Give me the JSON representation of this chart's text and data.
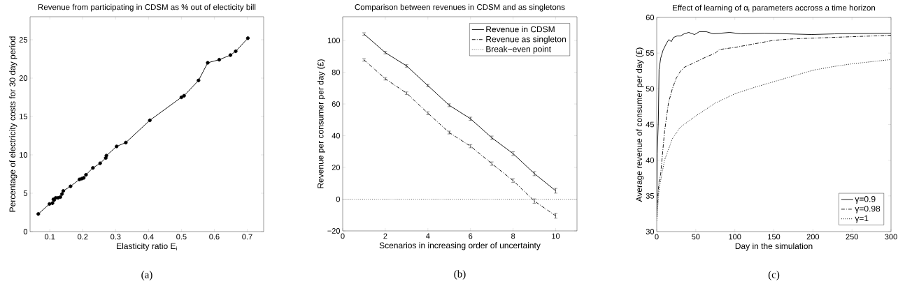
{
  "chart_data": [
    {
      "type": "line",
      "title": "Revenue from participating in CDSM as % out of electicity bill",
      "xlabel": "Elasticity ratio E$_{i}$",
      "ylabel": "Percentage of  electricity costs for 30 day period",
      "annotations": [
        "(a)"
      ],
      "xlim": [
        0.04,
        0.75
      ],
      "ylim": [
        0,
        28
      ],
      "xticks": [
        0.1,
        0.2,
        0.3,
        0.4,
        0.5,
        0.6,
        0.7
      ],
      "yticks": [
        0,
        5,
        10,
        15,
        20,
        25
      ],
      "marker": "circle",
      "line_style": "solid",
      "legend": false,
      "x": [
        0.065,
        0.099,
        0.108,
        0.111,
        0.113,
        0.118,
        0.125,
        0.132,
        0.137,
        0.141,
        0.163,
        0.19,
        0.197,
        0.203,
        0.21,
        0.231,
        0.253,
        0.27,
        0.272,
        0.303,
        0.331,
        0.404,
        0.5,
        0.508,
        0.552,
        0.58,
        0.615,
        0.649,
        0.665,
        0.702
      ],
      "series": [
        {
          "color": "#000000",
          "values": [
            2.3,
            3.6,
            3.7,
            4.2,
            4.1,
            4.4,
            4.4,
            4.5,
            4.9,
            5.3,
            5.9,
            6.8,
            6.9,
            7.0,
            7.4,
            8.3,
            8.9,
            9.6,
            9.9,
            11.1,
            11.6,
            14.5,
            17.5,
            17.7,
            19.7,
            22.0,
            22.4,
            23.0,
            23.5,
            25.2
          ]
        }
      ]
    },
    {
      "type": "line",
      "title": "Comparison between revenues in CDSM and as singletons",
      "xlabel": "Scenarios in increasing order of uncertainty",
      "ylabel": "Revenue per consumer per day (£)",
      "annotations": [
        "(b)"
      ],
      "xlim": [
        0,
        11
      ],
      "ylim": [
        -20,
        115
      ],
      "xticks": [
        0,
        2,
        4,
        6,
        8,
        10
      ],
      "yticks": [
        {
          "value": -20,
          "label": "−20"
        },
        0,
        20,
        40,
        60,
        80,
        100
      ],
      "legend": "top right",
      "x": [
        1,
        2,
        3,
        4,
        5,
        6,
        7,
        8,
        9,
        10
      ],
      "series": [
        {
          "name": "Revenue in CDSM",
          "color": "#000000",
          "line_style": "solid",
          "values": [
            104.1,
            92.4,
            84.0,
            71.6,
            59.2,
            50.7,
            38.7,
            28.7,
            16.1,
            5.3
          ],
          "errors": [
            0.8,
            0.8,
            0.8,
            0.8,
            0.9,
            1.0,
            1.1,
            1.2,
            1.3,
            1.5
          ]
        },
        {
          "name": "Revenue as singleton",
          "color": "#000000",
          "line_style": "dashdot",
          "values": [
            87.8,
            75.9,
            66.8,
            54.2,
            42.0,
            33.4,
            22.4,
            11.7,
            -1.2,
            -10.5
          ],
          "errors": [
            0.8,
            0.8,
            0.8,
            0.9,
            0.9,
            1.0,
            1.1,
            1.2,
            1.4,
            1.5
          ]
        }
      ],
      "ref_lines": [
        {
          "axis": "y",
          "value": 0,
          "label": "Break−even point",
          "color": "#000000",
          "line_style": "dotted"
        }
      ]
    },
    {
      "type": "line",
      "title": "Effect of learning of α$_{i}$ parameters accross a time horizon",
      "xlabel": "Day in the simulation",
      "ylabel": "Average revenue of consumer per day (£)",
      "annotations": [
        "(c)"
      ],
      "xlim": [
        0,
        300
      ],
      "ylim": [
        30,
        60
      ],
      "xticks": [
        0,
        50,
        100,
        150,
        200,
        250,
        300
      ],
      "yticks": [
        30,
        35,
        40,
        45,
        50,
        55,
        60
      ],
      "legend": "bottom right",
      "series": [
        {
          "name": "γ=0.9",
          "color": "#000000",
          "line_style": "solid",
          "x": [
            0,
            0.6,
            2.1,
            3,
            5.1,
            8.1,
            12.6,
            15.6,
            18.6,
            21.6,
            26,
            30.5,
            35,
            41,
            48.5,
            54.5,
            63.5,
            72.5,
            93.4,
            108,
            138,
            168,
            198,
            228,
            300
          ],
          "values": [
            32.1,
            40.9,
            45.5,
            52.7,
            54.3,
            55.4,
            56.4,
            56.9,
            56.6,
            57.2,
            57.4,
            57.4,
            57.7,
            57.9,
            57.6,
            58.0,
            58.0,
            57.7,
            57.9,
            57.7,
            57.8,
            57.7,
            57.6,
            57.7,
            57.8
          ]
        },
        {
          "name": "γ=0.98",
          "color": "#000000",
          "line_style": "dashdot",
          "x": [
            0,
            3,
            5,
            10,
            15,
            20,
            25,
            30,
            35,
            45,
            60,
            75,
            80,
            100,
            125,
            150,
            175,
            200,
            250,
            300
          ],
          "values": [
            33,
            37,
            38,
            44,
            48,
            50,
            51.5,
            52.4,
            53,
            53.5,
            54.3,
            55,
            55.5,
            55.8,
            56.3,
            56.8,
            57,
            57.1,
            57.3,
            57.5
          ]
        },
        {
          "name": "γ=1",
          "color": "#000000",
          "line_style": "dotted",
          "x": [
            0,
            3,
            10,
            20,
            30,
            50,
            75,
            100,
            125,
            150,
            175,
            200,
            225,
            250,
            275,
            300
          ],
          "values": [
            31.5,
            36,
            40,
            43,
            44.6,
            46.2,
            48,
            49.3,
            50.2,
            51,
            51.8,
            52.6,
            53.1,
            53.5,
            53.8,
            54.1
          ]
        }
      ]
    }
  ]
}
